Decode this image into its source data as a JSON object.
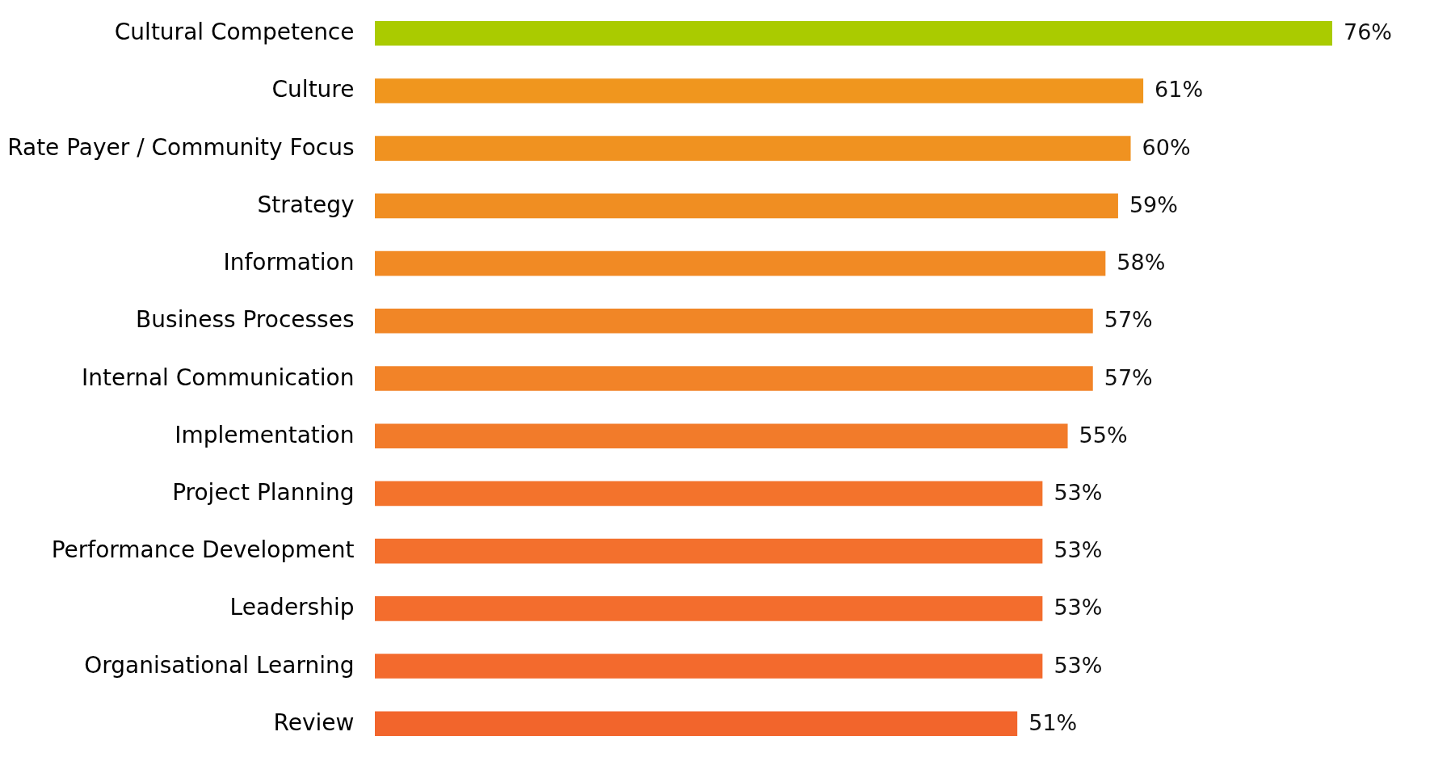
{
  "chart_data": {
    "type": "bar",
    "orientation": "horizontal",
    "categories": [
      "Cultural Competence",
      "Culture",
      "Rate Payer / Community Focus",
      "Strategy",
      "Information",
      "Business Processes",
      "Internal Communication",
      "Implementation",
      "Project Planning",
      "Performance Development",
      "Leadership",
      "Organisational Learning",
      "Review"
    ],
    "values": [
      76,
      61,
      60,
      59,
      58,
      57,
      57,
      55,
      53,
      53,
      53,
      53,
      51
    ],
    "value_labels": [
      "76%",
      "61%",
      "60%",
      "59%",
      "58%",
      "57%",
      "57%",
      "55%",
      "53%",
      "53%",
      "53%",
      "53%",
      "51%"
    ],
    "colors": [
      "#aacb00",
      "#f0961e",
      "#f09220",
      "#f08e22",
      "#f18a24",
      "#f18626",
      "#f28328",
      "#f27b2a",
      "#f3732c",
      "#f3702d",
      "#f36d2d",
      "#f36a2d",
      "#f2652c"
    ],
    "legend": false
  }
}
